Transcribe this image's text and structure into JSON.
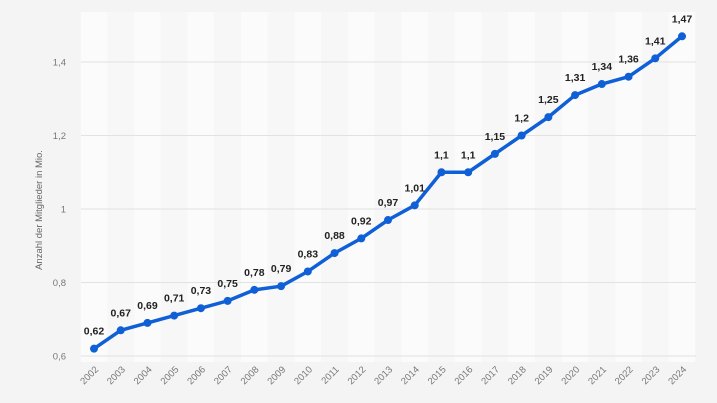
{
  "chart_data": {
    "type": "line",
    "ylabel": "Anzahl der Mitglieder in Mio.",
    "xlabel": "",
    "categories": [
      "2002",
      "2003",
      "2004",
      "2005",
      "2006",
      "2007",
      "2008",
      "2009",
      "2010",
      "2011",
      "2012",
      "2013",
      "2014",
      "2015",
      "2016",
      "2017",
      "2018",
      "2019",
      "2020",
      "2021",
      "2022",
      "2023",
      "2024"
    ],
    "values": [
      0.62,
      0.67,
      0.69,
      0.71,
      0.73,
      0.75,
      0.78,
      0.79,
      0.83,
      0.88,
      0.92,
      0.97,
      1.01,
      1.1,
      1.1,
      1.15,
      1.2,
      1.25,
      1.31,
      1.34,
      1.36,
      1.41,
      1.47
    ],
    "data_labels": [
      "0,62",
      "0,67",
      "0,69",
      "0,71",
      "0,73",
      "0,75",
      "0,78",
      "0,79",
      "0,83",
      "0,88",
      "0,92",
      "0,97",
      "1,01",
      "1,1",
      "1,1",
      "1,15",
      "1,2",
      "1,25",
      "1,31",
      "1,34",
      "1,36",
      "1,41",
      "1,47"
    ],
    "yticks": [
      0.6,
      0.8,
      1.0,
      1.2,
      1.4
    ],
    "ytick_labels": [
      "0,6",
      "0,8",
      "1",
      "1,2",
      "1,4"
    ],
    "ylim": [
      0.6,
      1.47
    ],
    "grid": true,
    "line_color": "#0f5fd6"
  }
}
